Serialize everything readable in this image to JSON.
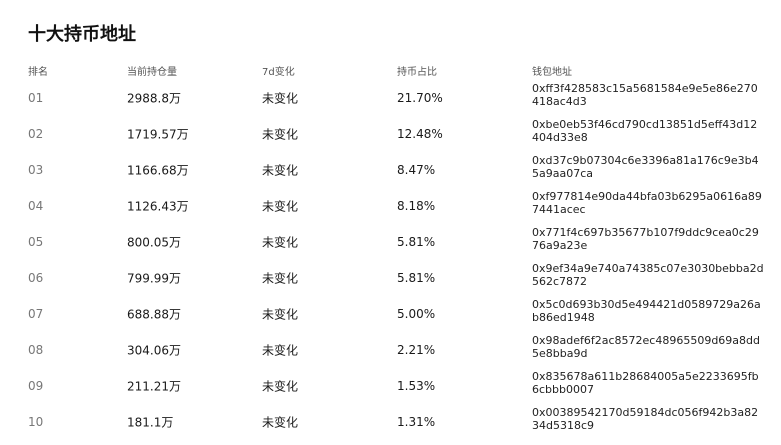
{
  "title": "十大持币地址",
  "headers": [
    "排名",
    "当前持仓量",
    "7d变化",
    "持币占比",
    "钱包地址"
  ],
  "rows": [
    {
      "rank": "01",
      "amount": "2988.8万",
      "change": "未变化",
      "share": "21.70%",
      "address": "0xff3f428583c15a5681584e9e5e86e270418ac4d3"
    },
    {
      "rank": "02",
      "amount": "1719.57万",
      "change": "未变化",
      "share": "12.48%",
      "address": "0xbe0eb53f46cd790cd13851d5eff43d12404d33e8"
    },
    {
      "rank": "03",
      "amount": "1166.68万",
      "change": "未变化",
      "share": "8.47%",
      "address": "0xd37c9b07304c6e3396a81a176c9e3b45a9aa07ca"
    },
    {
      "rank": "04",
      "amount": "1126.43万",
      "change": "未变化",
      "share": "8.18%",
      "address": "0xf977814e90da44bfa03b6295a0616a897441acec"
    },
    {
      "rank": "05",
      "amount": "800.05万",
      "change": "未变化",
      "share": "5.81%",
      "address": "0x771f4c697b35677b107f9ddc9cea0c2976a9a23e"
    },
    {
      "rank": "06",
      "amount": "799.99万",
      "change": "未变化",
      "share": "5.81%",
      "address": "0x9ef34a9e740a74385c07e3030bebba2d562c7872"
    },
    {
      "rank": "07",
      "amount": "688.88万",
      "change": "未变化",
      "share": "5.00%",
      "address": "0x5c0d693b30d5e494421d0589729a26ab86ed1948"
    },
    {
      "rank": "08",
      "amount": "304.06万",
      "change": "未变化",
      "share": "2.21%",
      "address": "0x98adef6f2ac8572ec48965509d69a8dd5e8bba9d"
    },
    {
      "rank": "09",
      "amount": "211.21万",
      "change": "未变化",
      "share": "1.53%",
      "address": "0x835678a611b28684005a5e2233695fb6cbbb0007"
    },
    {
      "rank": "10",
      "amount": "181.1万",
      "change": "未变化",
      "share": "1.31%",
      "address": "0x00389542170d59184dc056f942b3a8234d5318c9"
    }
  ]
}
